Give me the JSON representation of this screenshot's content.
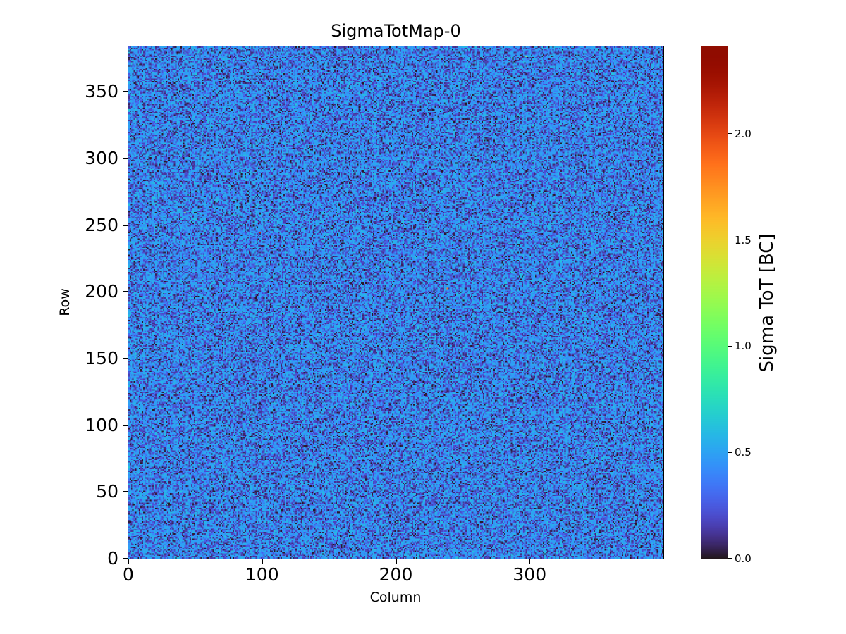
{
  "chart_data": {
    "type": "heatmap",
    "title": "SigmaTotMap-0",
    "xlabel": "Column",
    "ylabel": "Row",
    "xlim": [
      0,
      400
    ],
    "ylim": [
      0,
      384
    ],
    "xticks": [
      0,
      100,
      200,
      300
    ],
    "yticks": [
      0,
      50,
      100,
      150,
      200,
      250,
      300,
      350
    ],
    "grid": false,
    "colormap": "turbo",
    "vmin": 0.0,
    "vmax": 2.41,
    "colorbar": {
      "position": "right",
      "label": "Sigma ToT [BC]",
      "tick_values": [
        0.0,
        0.5,
        1.0,
        1.5,
        2.0
      ],
      "tick_labels": [
        "0.0",
        "0.5",
        "1.0",
        "1.5",
        "2.0"
      ]
    },
    "matrix": {
      "cols": 400,
      "rows": 384,
      "value_distribution": {
        "type": "bimodal-gaussian-noise",
        "modes": [
          {
            "mean": 0.49,
            "std": 0.055,
            "weight": 0.56
          },
          {
            "mean": 0.17,
            "std": 0.09,
            "weight": 0.44
          }
        ],
        "clip_min": 0.01,
        "clip_max": 2.41,
        "hot_pixels": 5,
        "seed": 20240
      }
    }
  },
  "colors": {
    "background": "#ffffff",
    "text": "#000000",
    "axis": "#000000",
    "dominant_low_value": "#2a165e",
    "dominant_high_value": "#467ef2"
  }
}
